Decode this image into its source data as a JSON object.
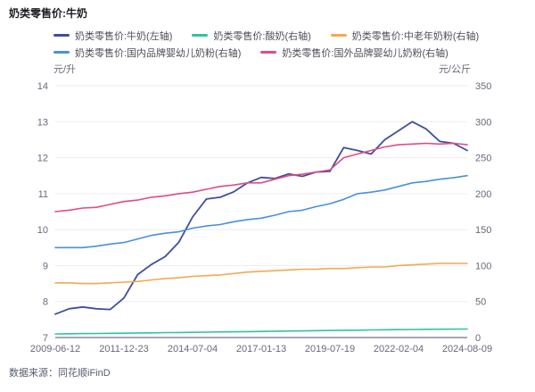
{
  "title": "奶类零售价:牛奶",
  "footer": {
    "source": "数据来源：同花顺iFinD"
  },
  "legend": {
    "rows": [
      [
        0,
        1,
        2
      ],
      [
        3,
        4
      ]
    ]
  },
  "chart_data": {
    "type": "line",
    "title": "奶类零售价:牛奶",
    "grid": true,
    "legend_position": "top",
    "x_tick_labels": [
      "2009-06-12",
      "2011-12-23",
      "2014-07-04",
      "2017-01-13",
      "2019-07-19",
      "2022-02-04",
      "2024-08-09"
    ],
    "x_dates": [
      "2009-06",
      "2009-12",
      "2010-06",
      "2010-12",
      "2011-06",
      "2011-12",
      "2012-06",
      "2012-12",
      "2013-06",
      "2014-01",
      "2014-07",
      "2015-01",
      "2015-07",
      "2016-01",
      "2016-07",
      "2017-01",
      "2017-07",
      "2018-01",
      "2018-07",
      "2019-01",
      "2019-07",
      "2020-01",
      "2020-07",
      "2021-02",
      "2021-08",
      "2022-02",
      "2022-08",
      "2023-02",
      "2023-08",
      "2024-02",
      "2024-08"
    ],
    "left_axis": {
      "unit": "元/升",
      "min": 7,
      "max": 14,
      "ticks": [
        14,
        13,
        12,
        11,
        10,
        9,
        8,
        7
      ]
    },
    "right_axis": {
      "unit": "元/公斤",
      "min": 0,
      "max": 350,
      "ticks": [
        350,
        300,
        250,
        200,
        150,
        100,
        50,
        0
      ]
    },
    "series": [
      {
        "id": "milk",
        "name": "奶类零售价:牛奶(左轴)",
        "axis": "left",
        "color": "#404e9d",
        "values": [
          7.65,
          7.8,
          7.85,
          7.8,
          7.78,
          8.1,
          8.75,
          9.03,
          9.25,
          9.65,
          10.35,
          10.85,
          10.9,
          11.05,
          11.3,
          11.45,
          11.42,
          11.55,
          11.48,
          11.6,
          11.62,
          12.28,
          12.2,
          12.1,
          12.5,
          12.75,
          13.0,
          12.8,
          12.45,
          12.4,
          12.2
        ]
      },
      {
        "id": "yogurt",
        "name": "奶类零售价:酸奶(右轴)",
        "axis": "right",
        "color": "#2fc2a5",
        "values": [
          5,
          5.2,
          5.4,
          5.6,
          5.8,
          6,
          6.3,
          6.5,
          6.8,
          7,
          7.2,
          7.5,
          7.8,
          8,
          8.2,
          8.5,
          8.8,
          9,
          9.2,
          9.5,
          9.8,
          10,
          10.2,
          10.5,
          10.8,
          11,
          11.2,
          11.4,
          11.5,
          11.7,
          11.8
        ]
      },
      {
        "id": "middle-aged-powder",
        "name": "奶类零售价:中老年奶粉(右轴)",
        "axis": "right",
        "color": "#f6a850",
        "values": [
          76,
          76,
          75,
          75,
          76,
          77,
          78,
          80,
          82,
          83,
          85,
          86,
          87,
          89,
          91,
          92,
          93,
          94,
          95,
          95,
          96,
          96,
          97,
          98,
          98,
          100,
          101,
          102,
          103,
          103,
          103
        ]
      },
      {
        "id": "domestic-infant-formula",
        "name": "奶类零售价:国内品牌婴幼儿奶粉(右轴)",
        "axis": "right",
        "color": "#4a90dc",
        "values": [
          125,
          125,
          125,
          127,
          130,
          132,
          137,
          142,
          145,
          147,
          152,
          155,
          157,
          161,
          164,
          166,
          170,
          175,
          177,
          182,
          186,
          192,
          200,
          202,
          205,
          210,
          215,
          217,
          220,
          222,
          225
        ]
      },
      {
        "id": "foreign-infant-formula",
        "name": "奶类零售价:国外品牌婴幼儿奶粉(右轴)",
        "axis": "right",
        "color": "#e34b86",
        "values": [
          175,
          177,
          180,
          181,
          185,
          189,
          191,
          195,
          197,
          200,
          202,
          206,
          210,
          212,
          215,
          215,
          220,
          225,
          227,
          230,
          233,
          250,
          255,
          260,
          265,
          268,
          269,
          270,
          269,
          270,
          268
        ]
      }
    ],
    "colors": {
      "grid": "#ececf3",
      "axis_line": "#a5a6b4",
      "axis_text": "#68697a"
    }
  }
}
